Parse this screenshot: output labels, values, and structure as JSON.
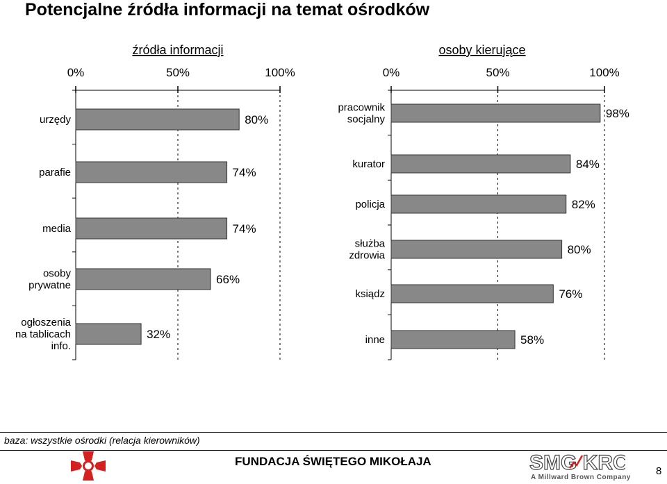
{
  "page": {
    "title": "Potencjalne źródła informacji na temat ośrodków",
    "footnote": "baza: wszystkie ośrodki (relacja kierowników)",
    "foundation": "FUNDACJA ŚWIĘTEGO MIKOŁAJA",
    "page_number": "8",
    "logo_right_text": "SMG KRC",
    "logo_right_subtitle": "A Millward Brown Company",
    "logo_left_icon": "caritas-cross-logo-icon"
  },
  "chart_data": [
    {
      "type": "bar",
      "orientation": "horizontal",
      "title": "źródła informacji",
      "tick_labels": [
        "0%",
        "50%",
        "100%"
      ],
      "xlim": [
        0,
        100
      ],
      "grid": true,
      "color": "#888888",
      "categories": [
        "urzędy",
        "parafie",
        "media",
        "osoby prywatne",
        "ogłoszenia na tablicach info."
      ],
      "values": [
        80,
        74,
        74,
        66,
        32
      ],
      "value_labels": [
        "80%",
        "74%",
        "74%",
        "66%",
        "32%"
      ]
    },
    {
      "type": "bar",
      "orientation": "horizontal",
      "title": "osoby kierujące",
      "tick_labels": [
        "0%",
        "50%",
        "100%"
      ],
      "xlim": [
        0,
        100
      ],
      "grid": true,
      "color": "#888888",
      "categories": [
        "pracownik socjalny",
        "kurator",
        "policja",
        "służba zdrowia",
        "ksiądz",
        "inne"
      ],
      "values": [
        98,
        84,
        82,
        80,
        76,
        58
      ],
      "value_labels": [
        "98%",
        "84%",
        "82%",
        "80%",
        "76%",
        "58%"
      ]
    }
  ]
}
